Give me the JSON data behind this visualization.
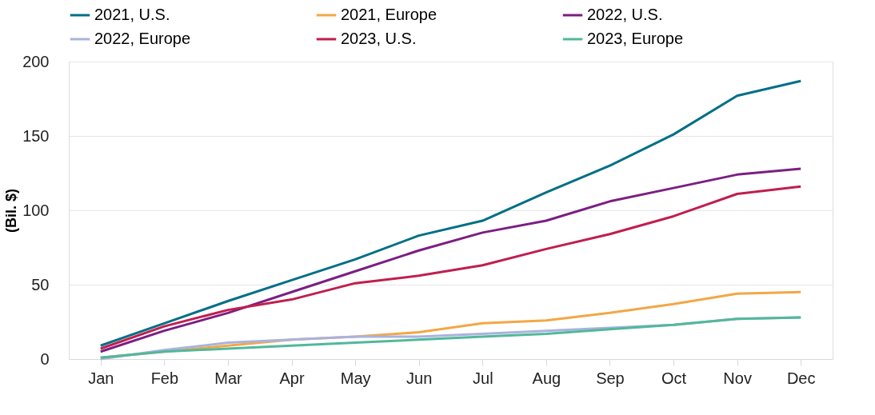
{
  "chart_data": {
    "type": "line",
    "ylabel": "(Bil. $)",
    "categories": [
      "Jan",
      "Feb",
      "Mar",
      "Apr",
      "May",
      "Jun",
      "Jul",
      "Aug",
      "Sep",
      "Oct",
      "Nov",
      "Dec"
    ],
    "ylim": [
      0,
      200
    ],
    "yticks": [
      0,
      50,
      100,
      150,
      200
    ],
    "grid": "y",
    "legend": "top",
    "marker": "none",
    "line_style": "solid",
    "series": [
      {
        "name": "2021, U.S.",
        "color": "#006f86",
        "values": [
          9,
          24,
          39,
          53,
          67,
          83,
          93,
          112,
          130,
          151,
          177,
          187
        ]
      },
      {
        "name": "2021, Europe",
        "color": "#f3a745",
        "values": [
          1,
          5,
          9,
          13,
          15,
          18,
          24,
          26,
          31,
          37,
          44,
          45
        ]
      },
      {
        "name": "2022, U.S.",
        "color": "#7b1f82",
        "values": [
          5,
          19,
          31,
          45,
          59,
          73,
          85,
          93,
          106,
          115,
          124,
          128
        ]
      },
      {
        "name": "2022, Europe",
        "color": "#a9b3de",
        "values": [
          0,
          6,
          11,
          13,
          15,
          15,
          17,
          19,
          21,
          23,
          27,
          28
        ]
      },
      {
        "name": "2023, U.S.",
        "color": "#c01e4e",
        "values": [
          7,
          22,
          33,
          40,
          51,
          56,
          63,
          74,
          84,
          96,
          111,
          116
        ]
      },
      {
        "name": "2023, Europe",
        "color": "#52b89a",
        "values": [
          1,
          5,
          7,
          9,
          11,
          13,
          15,
          17,
          20,
          23,
          27,
          28
        ]
      }
    ]
  }
}
